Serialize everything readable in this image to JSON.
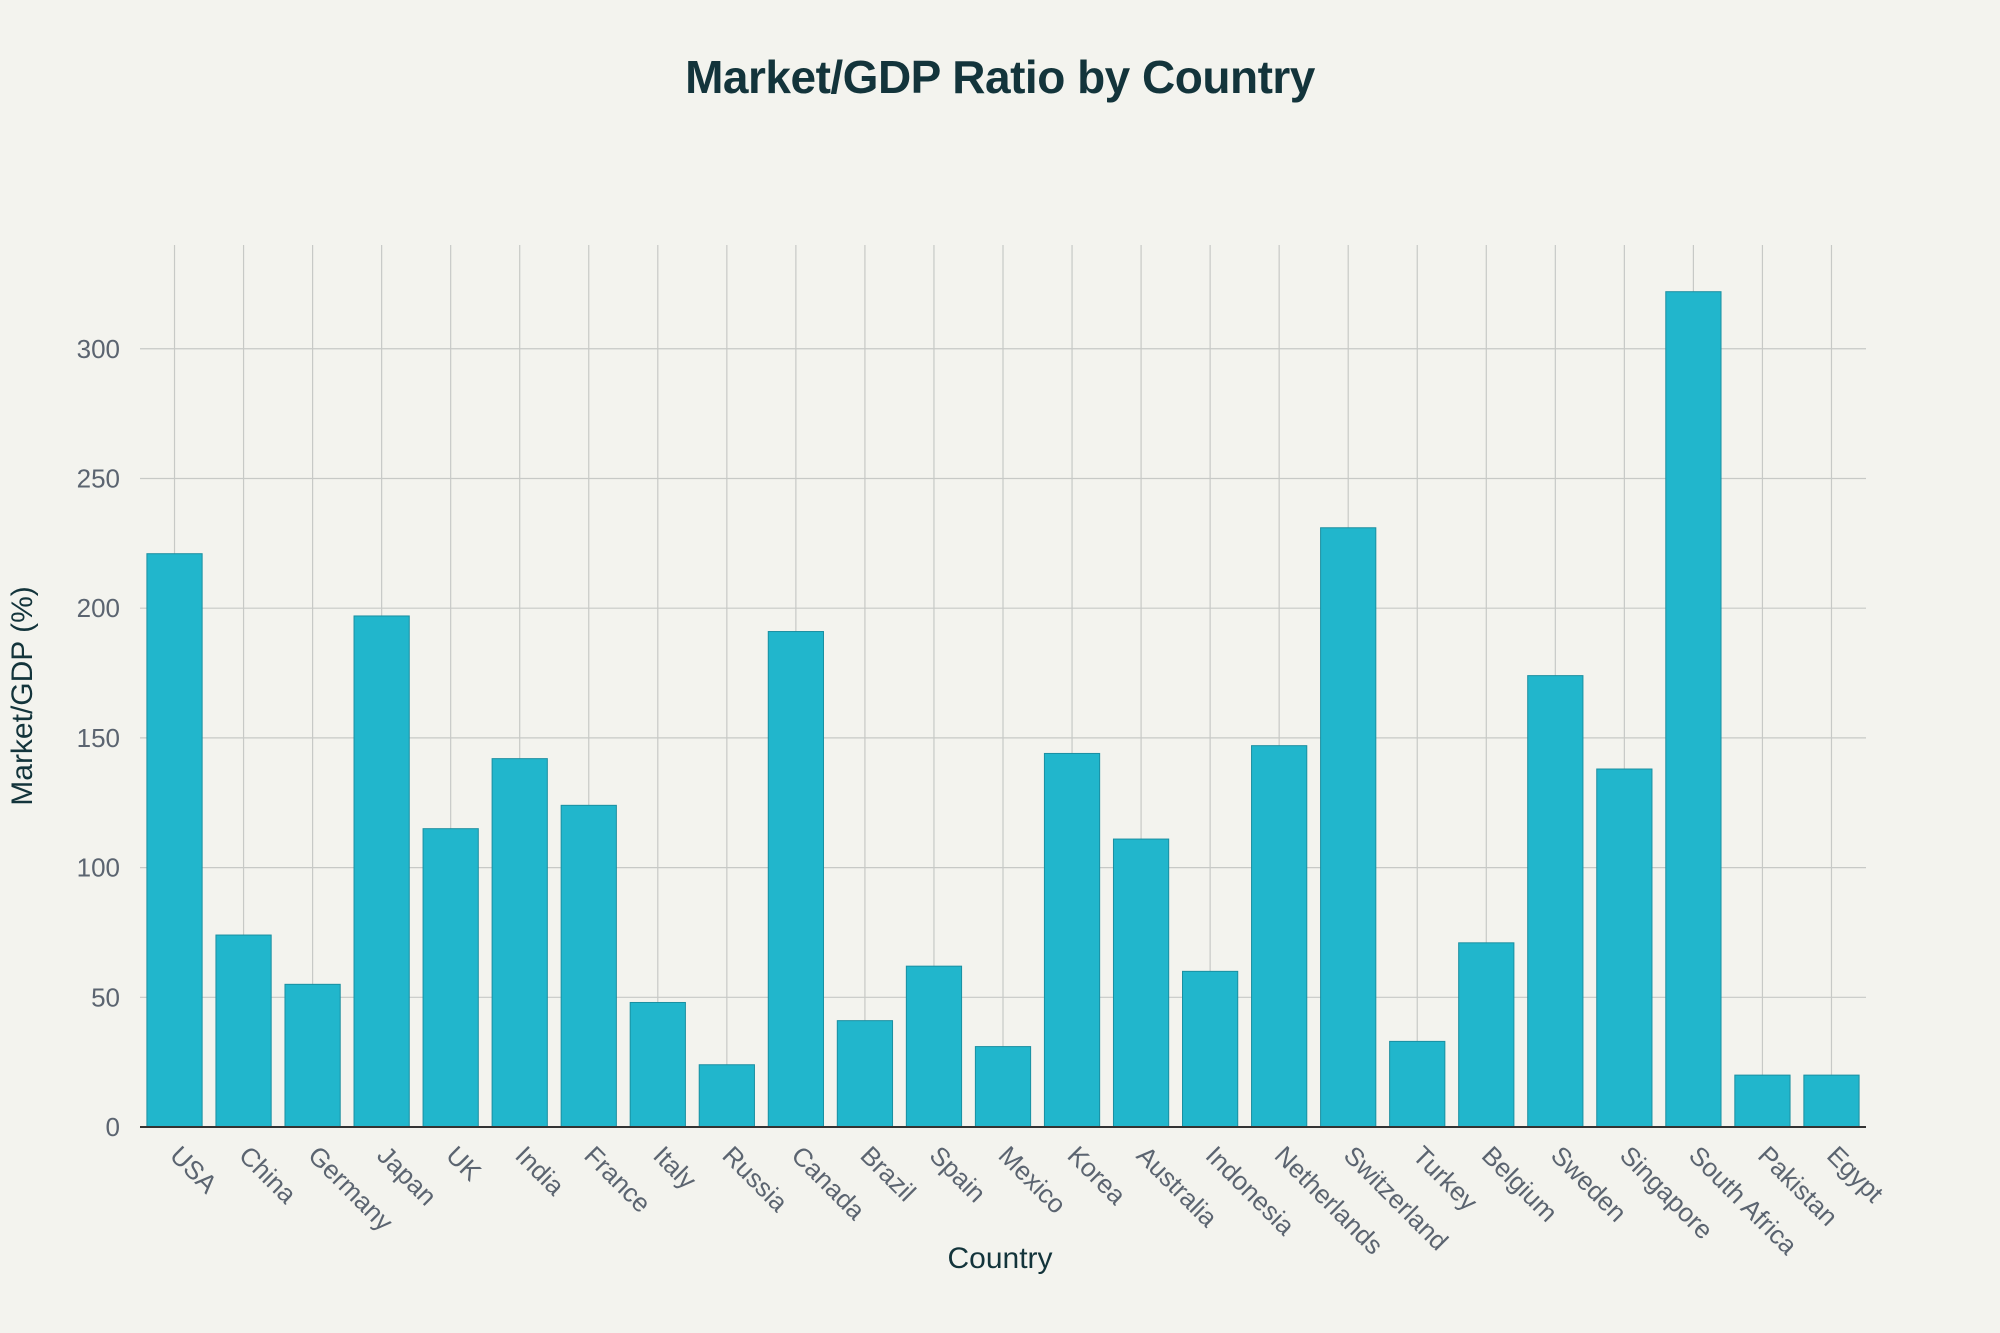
{
  "chart_data": {
    "type": "bar",
    "title": "Market/GDP Ratio by Country",
    "xlabel": "Country",
    "ylabel": "Market/GDP (%)",
    "categories": [
      "USA",
      "China",
      "Germany",
      "Japan",
      "UK",
      "India",
      "France",
      "Italy",
      "Russia",
      "Canada",
      "Brazil",
      "Spain",
      "Mexico",
      "Korea",
      "Australia",
      "Indonesia",
      "Netherlands",
      "Switzerland",
      "Turkey",
      "Belgium",
      "Sweden",
      "Singapore",
      "South Africa",
      "Pakistan",
      "Egypt"
    ],
    "values": [
      221,
      74,
      55,
      197,
      115,
      142,
      124,
      48,
      24,
      191,
      41,
      62,
      31,
      144,
      111,
      60,
      147,
      231,
      33,
      71,
      174,
      138,
      322,
      20,
      20
    ],
    "ylim": [
      0,
      340
    ],
    "yticks": [
      0,
      50,
      100,
      150,
      200,
      250,
      300
    ],
    "grid": true,
    "bar_color": "#21b6cc",
    "bar_edge_color": "#1a8fa1",
    "grid_color": "#c7c9c6",
    "axis_color": "#333333",
    "background_color": "#f3f3ee"
  }
}
